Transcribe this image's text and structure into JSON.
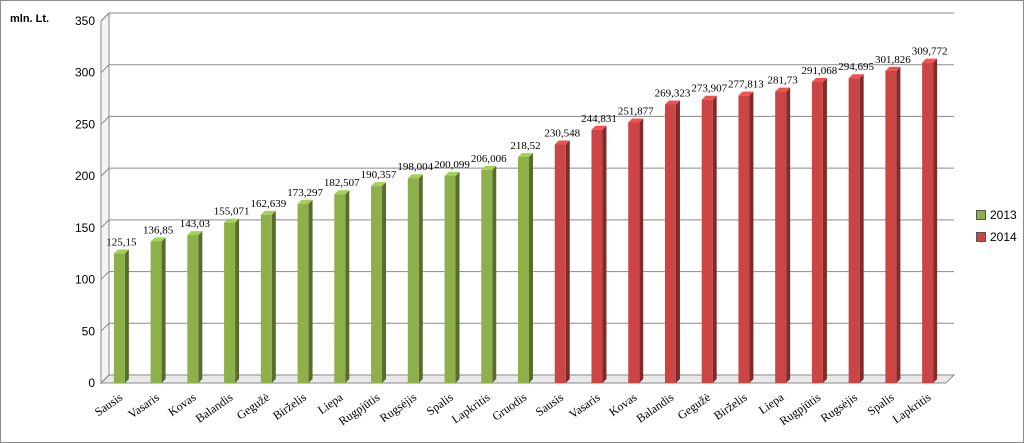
{
  "chart_data": {
    "type": "bar",
    "ylabel": "mln. Lt.",
    "ylim": [
      0,
      350
    ],
    "yticks": [
      0,
      50,
      100,
      150,
      200,
      250,
      300,
      350
    ],
    "grid": true,
    "legend_position": "right",
    "series": [
      {
        "name": "2013",
        "color": "#8db04a",
        "categories": [
          "Sausis",
          "Vasaris",
          "Kovas",
          "Balandis",
          "Gegužė",
          "Birželis",
          "Liepa",
          "Rugpjūtis",
          "Rugsėjis",
          "Spalis",
          "Lapkritis",
          "Gruodis"
        ],
        "values": [
          125.15,
          136.85,
          143.03,
          155.071,
          162.639,
          173.297,
          182.507,
          190.357,
          198.004,
          200.099,
          206.006,
          218.52
        ],
        "labels": [
          "125,15",
          "136,85",
          "143,03",
          "155,071",
          "162,639",
          "173,297",
          "182,507",
          "190,357",
          "198,004",
          "200,099",
          "206,006",
          "218,52"
        ]
      },
      {
        "name": "2014",
        "color": "#cc4545",
        "categories": [
          "Sausis",
          "Vasaris",
          "Kovas",
          "Balandis",
          "Gegužė",
          "Birželis",
          "Liepa",
          "Rugpjūtis",
          "Rugsėjis",
          "Spalis",
          "Lapkritis"
        ],
        "values": [
          230.548,
          244.831,
          251.877,
          269.323,
          273.907,
          277.813,
          281.73,
          291.068,
          294.695,
          301.826,
          309.772
        ],
        "labels": [
          "230,548",
          "244,831",
          "251,877",
          "269,323",
          "273,907",
          "277,813",
          "281,73",
          "291,068",
          "294,695",
          "301,826",
          "309,772"
        ]
      }
    ]
  }
}
